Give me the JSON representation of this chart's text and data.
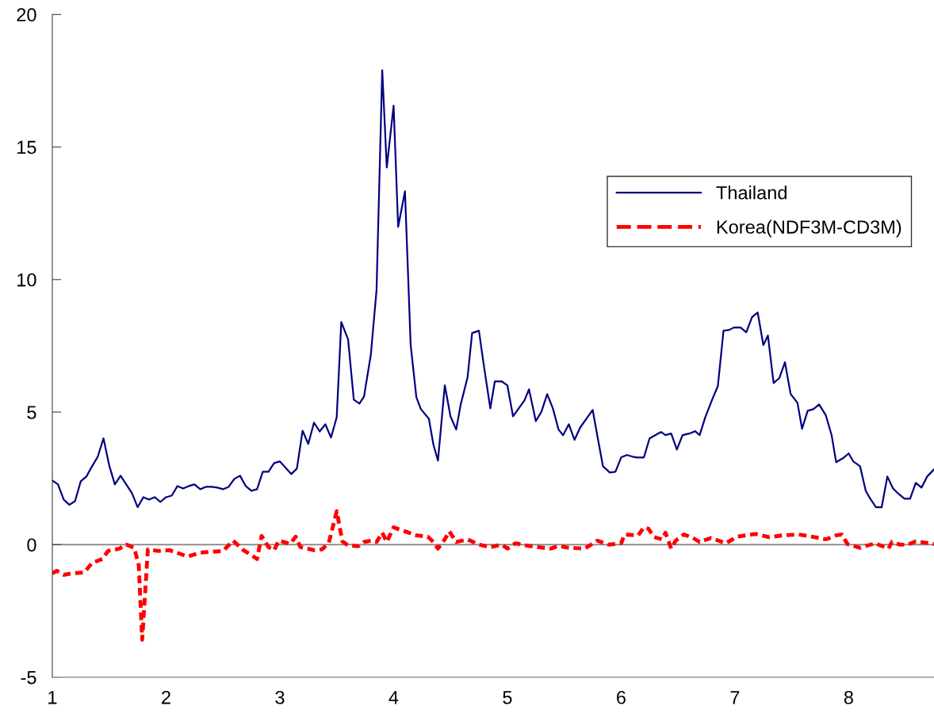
{
  "chart_data": {
    "type": "line",
    "xlim": [
      1,
      8.75
    ],
    "xticks": [
      1,
      2,
      3,
      4,
      5,
      6,
      7,
      8
    ],
    "ylim": [
      -5,
      20
    ],
    "yticks": [
      -5,
      0,
      5,
      10,
      15,
      20
    ],
    "grid": false,
    "legend": "top right",
    "marker": "none",
    "ref_lines": [
      {
        "axis": "y",
        "value": 0,
        "color": "#808080",
        "line_style": "solid"
      }
    ],
    "series": [
      {
        "name": "Thailand",
        "color": "#000080",
        "line_style": "solid",
        "x": [
          1.0,
          1.05,
          1.1,
          1.15,
          1.2,
          1.25,
          1.3,
          1.35,
          1.4,
          1.45,
          1.5,
          1.55,
          1.6,
          1.65,
          1.7,
          1.75,
          1.8,
          1.85,
          1.9,
          1.95,
          2.0,
          2.05,
          2.1,
          2.15,
          2.2,
          2.25,
          2.3,
          2.35,
          2.4,
          2.45,
          2.5,
          2.55,
          2.6,
          2.65,
          2.7,
          2.75,
          2.8,
          2.85,
          2.9,
          2.95,
          3.0,
          3.05,
          3.1,
          3.15,
          3.2,
          3.25,
          3.3,
          3.35,
          3.4,
          3.45,
          3.5,
          3.54,
          3.6,
          3.65,
          3.7,
          3.74,
          3.8,
          3.85,
          3.9,
          3.94,
          4.0,
          4.04,
          4.1,
          4.15,
          4.2,
          4.24,
          4.31,
          4.35,
          4.39,
          4.45,
          4.5,
          4.55,
          4.59,
          4.65,
          4.69,
          4.75,
          4.79,
          4.85,
          4.89,
          4.95,
          5.0,
          5.05,
          5.1,
          5.15,
          5.19,
          5.25,
          5.3,
          5.35,
          5.4,
          5.45,
          5.49,
          5.54,
          5.59,
          5.64,
          5.7,
          5.75,
          5.79,
          5.84,
          5.9,
          5.95,
          6.0,
          6.05,
          6.1,
          6.14,
          6.2,
          6.25,
          6.3,
          6.35,
          6.39,
          6.44,
          6.49,
          6.54,
          6.6,
          6.65,
          6.69,
          6.74,
          6.8,
          6.85,
          6.9,
          6.95,
          6.99,
          7.05,
          7.1,
          7.15,
          7.2,
          7.25,
          7.29,
          7.34,
          7.39,
          7.44,
          7.49,
          7.55,
          7.59,
          7.64,
          7.69,
          7.74,
          7.8,
          7.85,
          7.89,
          7.95,
          8.0,
          8.04,
          8.1,
          8.15,
          8.19,
          8.24,
          8.29,
          8.34,
          8.39,
          8.44,
          8.49,
          8.54,
          8.59,
          8.64,
          8.69,
          8.75
        ],
        "values": [
          2.42,
          2.27,
          1.7,
          1.5,
          1.64,
          2.39,
          2.57,
          2.96,
          3.32,
          4.01,
          2.99,
          2.27,
          2.6,
          2.27,
          1.94,
          1.41,
          1.79,
          1.7,
          1.79,
          1.61,
          1.79,
          1.85,
          2.21,
          2.12,
          2.21,
          2.27,
          2.09,
          2.18,
          2.18,
          2.15,
          2.09,
          2.18,
          2.48,
          2.6,
          2.21,
          2.03,
          2.09,
          2.75,
          2.75,
          3.08,
          3.14,
          2.9,
          2.66,
          2.87,
          4.3,
          3.8,
          4.6,
          4.27,
          4.54,
          4.04,
          4.81,
          8.4,
          7.74,
          5.47,
          5.32,
          5.59,
          7.17,
          9.6,
          17.9,
          14.23,
          16.56,
          11.99,
          13.33,
          7.53,
          5.56,
          5.11,
          4.75,
          3.77,
          3.17,
          6.01,
          4.84,
          4.34,
          5.29,
          6.31,
          7.98,
          8.07,
          6.85,
          5.14,
          6.16,
          6.16,
          6.01,
          4.84,
          5.14,
          5.44,
          5.86,
          4.66,
          5.02,
          5.68,
          5.14,
          4.34,
          4.13,
          4.54,
          3.95,
          4.42,
          4.78,
          5.08,
          4.13,
          2.96,
          2.72,
          2.75,
          3.29,
          3.38,
          3.32,
          3.29,
          3.29,
          4.01,
          4.13,
          4.25,
          4.13,
          4.19,
          3.59,
          4.13,
          4.19,
          4.28,
          4.13,
          4.81,
          5.47,
          5.98,
          8.07,
          8.1,
          8.19,
          8.19,
          8.01,
          8.58,
          8.76,
          7.53,
          7.89,
          6.1,
          6.28,
          6.88,
          5.68,
          5.35,
          4.37,
          5.05,
          5.11,
          5.29,
          4.87,
          4.13,
          3.11,
          3.26,
          3.44,
          3.14,
          2.96,
          2.03,
          1.73,
          1.41,
          1.41,
          2.57,
          2.12,
          1.91,
          1.73,
          1.73,
          2.33,
          2.15,
          2.57,
          2.84
        ]
      },
      {
        "name": "Korea(NDF3M-CD3M)",
        "color": "#ff0000",
        "line_style": "dashed",
        "x": [
          1.0,
          1.04,
          1.1,
          1.18,
          1.28,
          1.35,
          1.44,
          1.49,
          1.59,
          1.65,
          1.72,
          1.76,
          1.79,
          1.84,
          1.93,
          2.03,
          2.19,
          2.3,
          2.5,
          2.59,
          2.67,
          2.8,
          2.84,
          2.9,
          2.95,
          2.99,
          3.09,
          3.14,
          3.18,
          3.3,
          3.37,
          3.43,
          3.5,
          3.55,
          3.6,
          3.69,
          3.74,
          3.8,
          3.85,
          3.9,
          3.94,
          4.0,
          4.1,
          4.2,
          4.3,
          4.35,
          4.39,
          4.45,
          4.49,
          4.55,
          4.65,
          4.75,
          4.85,
          4.95,
          5.0,
          5.07,
          5.19,
          5.38,
          5.45,
          5.54,
          5.68,
          5.79,
          5.89,
          6.0,
          6.03,
          6.15,
          6.2,
          6.24,
          6.29,
          6.36,
          6.39,
          6.44,
          6.48,
          6.55,
          6.62,
          6.69,
          6.79,
          6.92,
          7.02,
          7.18,
          7.3,
          7.42,
          7.56,
          7.68,
          7.8,
          7.89,
          7.94,
          7.99,
          8.1,
          8.23,
          8.35,
          8.38,
          8.45,
          8.52,
          8.59,
          8.71,
          8.75
        ],
        "values": [
          -1.08,
          -0.99,
          -1.14,
          -1.08,
          -1.05,
          -0.69,
          -0.54,
          -0.24,
          -0.15,
          0.0,
          -0.12,
          -0.78,
          -3.59,
          -0.18,
          -0.24,
          -0.21,
          -0.45,
          -0.3,
          -0.24,
          0.15,
          -0.18,
          -0.54,
          0.33,
          -0.09,
          -0.21,
          0.15,
          0.03,
          0.3,
          -0.09,
          -0.21,
          -0.18,
          0.06,
          1.26,
          0.12,
          -0.03,
          -0.06,
          0.1,
          0.15,
          0.1,
          0.45,
          0.1,
          0.65,
          0.5,
          0.35,
          0.3,
          0.1,
          -0.15,
          0.2,
          0.5,
          0.1,
          0.2,
          0.0,
          -0.1,
          0.0,
          -0.15,
          0.05,
          -0.05,
          -0.15,
          -0.05,
          -0.12,
          -0.15,
          0.15,
          0.0,
          0.05,
          0.38,
          0.35,
          0.65,
          0.6,
          0.28,
          0.2,
          0.45,
          -0.15,
          0.15,
          0.38,
          0.28,
          0.1,
          0.25,
          0.05,
          0.3,
          0.4,
          0.28,
          0.35,
          0.38,
          0.3,
          0.2,
          0.35,
          0.38,
          0.02,
          -0.12,
          0.05,
          -0.15,
          0.1,
          0.0,
          0.0,
          0.12,
          0.05,
          0.02
        ]
      }
    ]
  }
}
